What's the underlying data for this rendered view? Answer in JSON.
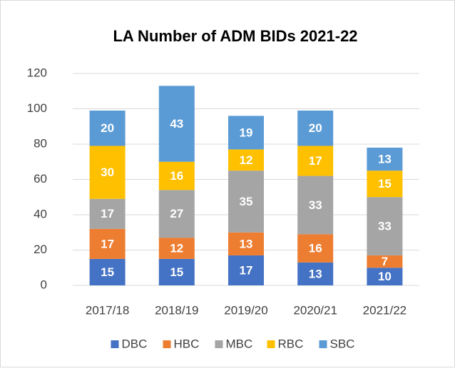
{
  "chart_data": {
    "type": "stacked_bar",
    "title": "LA Number of ADM BIDs 2021-22",
    "categories": [
      "2017/18",
      "2018/19",
      "2019/20",
      "2020/21",
      "2021/22"
    ],
    "series": [
      {
        "name": "DBC",
        "color": "#4472c4",
        "values": [
          15,
          15,
          17,
          13,
          10
        ]
      },
      {
        "name": "HBC",
        "color": "#ed7d31",
        "values": [
          17,
          12,
          13,
          16,
          7
        ]
      },
      {
        "name": "MBC",
        "color": "#a5a5a5",
        "values": [
          17,
          27,
          35,
          33,
          33
        ]
      },
      {
        "name": "RBC",
        "color": "#ffc000",
        "values": [
          30,
          16,
          12,
          17,
          15
        ]
      },
      {
        "name": "SBC",
        "color": "#5b9bd5",
        "values": [
          20,
          43,
          19,
          20,
          13
        ]
      }
    ],
    "ylim": [
      0,
      120
    ],
    "yticks": [
      0,
      20,
      40,
      60,
      80,
      100,
      120
    ],
    "grid": true,
    "legend": "bottom"
  }
}
